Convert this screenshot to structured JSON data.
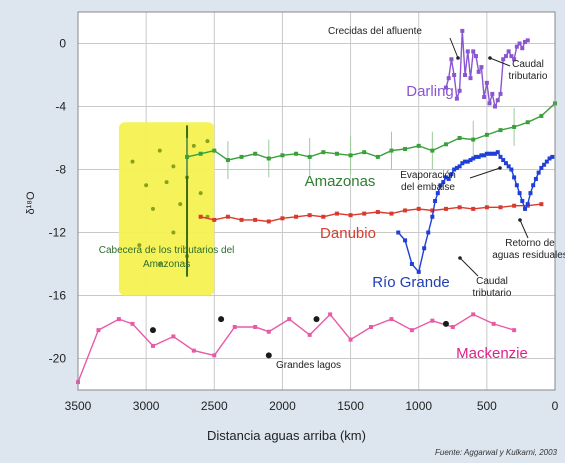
{
  "chart_data": {
    "type": "line",
    "title": "",
    "xlabel": "Distancia aguas arriba (km)",
    "ylabel": "δ¹⁸O",
    "xlim": [
      3500,
      0
    ],
    "ylim": [
      -22,
      2
    ],
    "x_ticks": [
      "3500",
      "3000",
      "2500",
      "2000",
      "1500",
      "1000",
      "500",
      "0"
    ],
    "y_ticks": [
      "0",
      "-4",
      "-8",
      "-12",
      "-16",
      "-20"
    ],
    "grid": true,
    "series": [
      {
        "name": "Darling",
        "color": "#8a55d0",
        "label_color": "#8a55d0",
        "x": [
          800,
          780,
          760,
          740,
          720,
          700,
          680,
          660,
          640,
          620,
          600,
          580,
          560,
          540,
          520,
          500,
          480,
          460,
          440,
          420,
          400,
          380,
          360,
          340,
          320,
          300,
          280,
          260,
          240,
          220,
          200
        ],
        "y": [
          -2.8,
          -2.2,
          -1.0,
          -2.0,
          -3.5,
          -3.0,
          0.8,
          -2.0,
          -0.5,
          -2.2,
          -0.5,
          -0.8,
          -1.8,
          -1.5,
          -3.4,
          -2.5,
          -3.8,
          -3.2,
          -4.0,
          -3.6,
          -3.2,
          -1.0,
          -0.8,
          -0.5,
          -0.8,
          -1.0,
          -0.2,
          0.0,
          -0.3,
          0.1,
          0.2
        ]
      },
      {
        "name": "Amazonas",
        "color": "#3aa13a",
        "label_color": "#2e7d32",
        "x": [
          2700,
          2600,
          2500,
          2400,
          2300,
          2200,
          2100,
          2000,
          1900,
          1800,
          1700,
          1600,
          1500,
          1400,
          1300,
          1200,
          1100,
          1000,
          900,
          800,
          700,
          600,
          500,
          400,
          300,
          200,
          100,
          0
        ],
        "y": [
          -7.2,
          -7.0,
          -6.8,
          -7.4,
          -7.2,
          -7.0,
          -7.3,
          -7.1,
          -7.0,
          -7.2,
          -6.9,
          -7.0,
          -7.1,
          -6.9,
          -7.2,
          -6.8,
          -6.7,
          -6.5,
          -6.8,
          -6.4,
          -6.0,
          -6.1,
          -5.8,
          -5.5,
          -5.3,
          -5.0,
          -4.6,
          -3.8
        ]
      },
      {
        "name": "Danubio",
        "color": "#d93a2f",
        "label_color": "#d93a2f",
        "x": [
          2600,
          2500,
          2400,
          2300,
          2200,
          2100,
          2000,
          1900,
          1800,
          1700,
          1600,
          1500,
          1400,
          1300,
          1200,
          1100,
          1000,
          900,
          800,
          700,
          600,
          500,
          400,
          300,
          200,
          100
        ],
        "y": [
          -11.0,
          -11.2,
          -11.0,
          -11.2,
          -11.2,
          -11.3,
          -11.1,
          -11.0,
          -10.9,
          -11.0,
          -10.8,
          -10.9,
          -10.8,
          -10.7,
          -10.8,
          -10.6,
          -10.5,
          -10.6,
          -10.5,
          -10.4,
          -10.5,
          -10.4,
          -10.4,
          -10.3,
          -10.3,
          -10.2
        ]
      },
      {
        "name": "Río Grande",
        "color": "#1f3fd8",
        "label_color": "#1f3fb0",
        "x": [
          1150,
          1100,
          1050,
          1000,
          960,
          930,
          900,
          880,
          860,
          840,
          820,
          800,
          780,
          760,
          740,
          720,
          700,
          680,
          660,
          640,
          620,
          600,
          580,
          560,
          540,
          520,
          500,
          480,
          460,
          440,
          420,
          400,
          380,
          360,
          340,
          320,
          300,
          280,
          260,
          240,
          220,
          200,
          180,
          160,
          140,
          120,
          100,
          80,
          60,
          40,
          20
        ],
        "y": [
          -12.0,
          -12.5,
          -14.0,
          -14.5,
          -13.0,
          -12.0,
          -11.0,
          -10.0,
          -9.5,
          -9.0,
          -8.8,
          -8.5,
          -8.6,
          -8.3,
          -8.0,
          -7.9,
          -7.8,
          -7.6,
          -7.5,
          -7.5,
          -7.4,
          -7.3,
          -7.2,
          -7.2,
          -7.1,
          -7.1,
          -7.0,
          -7.0,
          -7.0,
          -7.0,
          -6.9,
          -7.2,
          -7.4,
          -7.6,
          -7.8,
          -8.0,
          -8.5,
          -9.0,
          -9.5,
          -10.0,
          -10.5,
          -10.2,
          -9.5,
          -9.0,
          -8.6,
          -8.2,
          -7.9,
          -7.7,
          -7.5,
          -7.3,
          -7.2
        ]
      },
      {
        "name": "Mackenzie",
        "color": "#e85aa8",
        "label_color": "#e0208a",
        "x": [
          3500,
          3350,
          3200,
          3100,
          2950,
          2800,
          2650,
          2500,
          2350,
          2200,
          2100,
          1950,
          1800,
          1650,
          1500,
          1350,
          1200,
          1050,
          900,
          750,
          600,
          450,
          300
        ],
        "y": [
          -21.5,
          -18.2,
          -17.5,
          -17.8,
          -19.2,
          -18.6,
          -19.5,
          -19.8,
          -18.0,
          -18.0,
          -18.3,
          -17.5,
          -18.5,
          -17.2,
          -18.8,
          -18.0,
          -17.5,
          -18.2,
          -17.6,
          -18.0,
          -17.2,
          -17.8,
          -18.2
        ]
      }
    ],
    "great_lakes": {
      "x": [
        2950,
        2450,
        2100,
        1750,
        800
      ],
      "y": [
        -18.2,
        -17.5,
        -19.8,
        -17.5,
        -17.8
      ]
    },
    "highlight": {
      "x_range": [
        3200,
        2500
      ],
      "y_range": [
        -16,
        -5
      ],
      "label": "Cabecera de los tributarios del Amazonas"
    },
    "annotations": [
      {
        "text": "Crecidas del afluente",
        "x": 900,
        "y": 1.0
      },
      {
        "text": "Caudal tributario",
        "x": 380,
        "y": -1.5
      },
      {
        "text": "Evaporación del embalse",
        "x": 800,
        "y": -8.0
      },
      {
        "text": "Retorno de aguas residuales",
        "x": 200,
        "y": -13.0
      },
      {
        "text": "Caudal tributario",
        "x": 650,
        "y": -15.0
      },
      {
        "text": "Grandes lagos",
        "x": 1900,
        "y": -20.5
      }
    ],
    "source": "Fuente: Aggarwal y Kulkarni, 2003"
  }
}
